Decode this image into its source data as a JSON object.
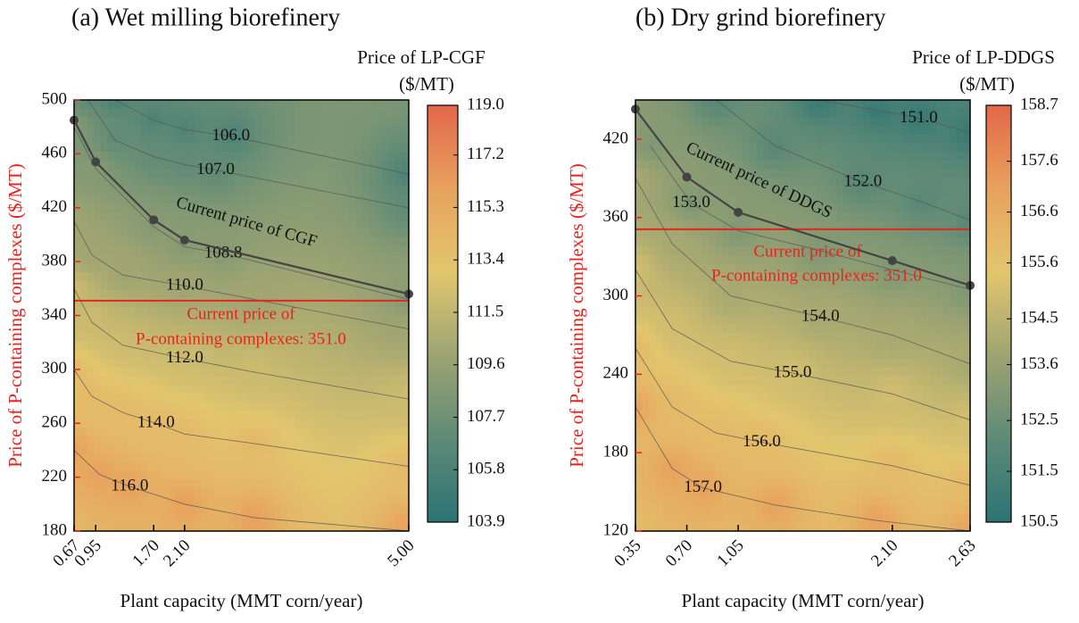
{
  "chart_data": [
    {
      "type": "contour",
      "title": "(a) Wet milling biorefinery",
      "xlabel": "Plant capacity (MMT corn/year)",
      "ylabel": "Price of P-containing complexes ($/MT)",
      "ylabel_color": "#e8231f",
      "xlim": [
        0.67,
        5
      ],
      "xticks": [
        0.67,
        0.95,
        {
          "value": 1.7,
          "label": "1.70"
        },
        {
          "value": 2.1,
          "label": "2.10"
        },
        {
          "value": 5,
          "label": "5.00"
        }
      ],
      "ylim": [
        180,
        500
      ],
      "yticks": [
        180,
        220,
        260,
        300,
        340,
        380,
        420,
        460,
        500
      ],
      "colorbar_title": [
        "Price of LP-CGF",
        "($/MT)"
      ],
      "clim": [
        103.9,
        119
      ],
      "cticks": [
        {
          "value": 119,
          "label": "119.0"
        },
        117.2,
        115.3,
        113.4,
        111.5,
        109.6,
        107.7,
        105.8,
        103.9
      ],
      "colormap": [
        "#2b7474",
        "#5e8a76",
        "#9ea472",
        "#e2c66e",
        "#e8a25d",
        "#e3674a"
      ],
      "contours": [
        {
          "level": 106,
          "label": "106.0",
          "x": [
            1.2,
            1.7,
            2.1,
            2.7,
            5.0
          ],
          "y": [
            500,
            485,
            478,
            473,
            445
          ]
        },
        {
          "level": 107,
          "label": "107.0",
          "x": [
            0.85,
            1.2,
            1.7,
            2.1,
            2.5,
            5.0
          ],
          "y": [
            500,
            470,
            458,
            452,
            448,
            420
          ]
        },
        {
          "level": 108.8,
          "label": "108.8",
          "x": [
            0.67,
            0.95,
            1.7,
            2.1,
            2.6,
            5.0
          ],
          "y": [
            480,
            449,
            406,
            391,
            386,
            352
          ]
        },
        {
          "level": 110,
          "label": "110.0",
          "x": [
            0.67,
            0.9,
            1.3,
            2.1,
            3.0,
            5.0
          ],
          "y": [
            410,
            385,
            370,
            362,
            352,
            330
          ]
        },
        {
          "level": 112,
          "label": "112.0",
          "x": [
            0.67,
            0.9,
            1.3,
            2.1,
            3.0,
            5.0
          ],
          "y": [
            360,
            335,
            318,
            308,
            298,
            278
          ]
        },
        {
          "level": 114,
          "label": "114.0",
          "x": [
            0.67,
            0.9,
            1.3,
            1.73,
            2.1,
            3.0,
            5.0
          ],
          "y": [
            300,
            280,
            268,
            260,
            252,
            245,
            228
          ]
        },
        {
          "level": 116,
          "label": "116.0",
          "x": [
            0.67,
            1.0,
            1.39,
            2.1,
            3.0,
            5.0
          ],
          "y": [
            240,
            222,
            213,
            200,
            190,
            180
          ]
        }
      ],
      "series": [
        {
          "name": "Current price of CGF",
          "color": "#444444",
          "x": [
            0.67,
            0.95,
            1.7,
            2.1,
            5.0
          ],
          "values": [
            485,
            454,
            411,
            396,
            356
          ]
        }
      ],
      "reference_line": {
        "value": 351,
        "color": "#e8231f",
        "label": [
          "Current price of",
          "P-containing complexes: 351.0"
        ]
      }
    },
    {
      "type": "contour",
      "title": "(b) Dry grind biorefinery",
      "xlabel": "Plant capacity (MMT corn/year)",
      "ylabel": "Price of P-containing complexes ($/MT)",
      "ylabel_color": "#e8231f",
      "xlim": [
        0.35,
        2.63
      ],
      "xticks": [
        0.35,
        {
          "value": 0.7,
          "label": "0.70"
        },
        1.05,
        {
          "value": 2.1,
          "label": "2.10"
        },
        2.63
      ],
      "ylim": [
        120,
        450
      ],
      "yticks": [
        120,
        180,
        240,
        300,
        360,
        420
      ],
      "colorbar_title": [
        "Price of LP-DDGS",
        "($/MT)"
      ],
      "clim": [
        150.5,
        158.7
      ],
      "cticks": [
        158.7,
        157.6,
        156.6,
        155.6,
        154.5,
        153.6,
        152.5,
        151.5,
        150.5
      ],
      "colormap": [
        "#2b7474",
        "#5e8a76",
        "#9ea472",
        "#e2c66e",
        "#e8a25d",
        "#e3674a"
      ],
      "contours": [
        {
          "level": 151,
          "label": "151.0",
          "x": [
            1.6,
            2.0,
            2.28,
            2.63
          ],
          "y": [
            450,
            442,
            436,
            425
          ]
        },
        {
          "level": 152,
          "label": "152.0",
          "x": [
            0.9,
            1.3,
            1.9,
            2.3,
            2.63
          ],
          "y": [
            450,
            415,
            387,
            372,
            358
          ]
        },
        {
          "level": 153,
          "label": "153.0",
          "x": [
            0.45,
            0.73,
            1.05,
            1.6,
            2.1,
            2.63
          ],
          "y": [
            415,
            371,
            350,
            335,
            320,
            305
          ]
        },
        {
          "level": 154,
          "label": "154.0",
          "x": [
            0.35,
            0.6,
            1.0,
            1.61,
            2.1,
            2.63
          ],
          "y": [
            390,
            340,
            300,
            284,
            270,
            248
          ]
        },
        {
          "level": 155,
          "label": "155.0",
          "x": [
            0.35,
            0.6,
            1.0,
            1.42,
            2.1,
            2.63
          ],
          "y": [
            320,
            275,
            250,
            241,
            225,
            205
          ]
        },
        {
          "level": 156,
          "label": "156.0",
          "x": [
            0.35,
            0.6,
            0.9,
            1.21,
            2.1,
            2.63
          ],
          "y": [
            260,
            215,
            195,
            188,
            170,
            155
          ]
        },
        {
          "level": 157,
          "label": "157.0",
          "x": [
            0.35,
            0.6,
            0.81,
            1.3,
            2.0,
            2.63
          ],
          "y": [
            215,
            168,
            153,
            140,
            128,
            120
          ]
        }
      ],
      "series": [
        {
          "name": "Current price of DDGS",
          "color": "#444444",
          "x": [
            0.35,
            0.7,
            1.05,
            2.1,
            2.63
          ],
          "values": [
            443,
            391,
            364,
            327,
            308
          ]
        }
      ],
      "reference_line": {
        "value": 351,
        "color": "#e8231f",
        "label": [
          "Current price of",
          "P-containing complexes: 351.0"
        ]
      }
    }
  ]
}
